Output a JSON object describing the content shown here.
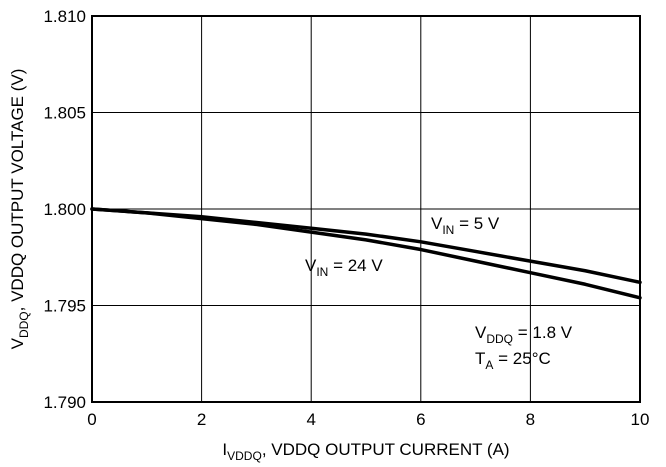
{
  "chart_data": {
    "type": "line",
    "title": "",
    "xlabel": {
      "prefix": "I",
      "sub": "VDDQ",
      "suffix": ", VDDQ OUTPUT CURRENT (A)"
    },
    "ylabel": {
      "prefix": "V",
      "sub": "DDQ",
      "suffix": ", VDDQ OUTPUT VOLTAGE (V)"
    },
    "xlim": [
      0,
      10
    ],
    "ylim": [
      1.79,
      1.81
    ],
    "xticks": [
      0,
      2,
      4,
      6,
      8,
      10
    ],
    "xtick_labels": [
      "0",
      "2",
      "4",
      "6",
      "8",
      "10"
    ],
    "yticks": [
      1.79,
      1.795,
      1.8,
      1.805,
      1.81
    ],
    "ytick_labels": [
      "1.790",
      "1.795",
      "1.800",
      "1.805",
      "1.810"
    ],
    "grid": true,
    "series": [
      {
        "key": "vin5",
        "label": {
          "prefix": "V",
          "sub": "IN",
          "suffix": " = 5 V"
        },
        "x": [
          0,
          1,
          2,
          3,
          4,
          5,
          6,
          7,
          8,
          9,
          10
        ],
        "y": [
          1.8,
          1.7998,
          1.7996,
          1.7993,
          1.799,
          1.7987,
          1.7983,
          1.7978,
          1.7973,
          1.7968,
          1.7962
        ]
      },
      {
        "key": "vin24",
        "label": {
          "prefix": "V",
          "sub": "IN",
          "suffix": " = 24 V"
        },
        "x": [
          0,
          1,
          2,
          3,
          4,
          5,
          6,
          7,
          8,
          9,
          10
        ],
        "y": [
          1.8,
          1.7998,
          1.7995,
          1.7992,
          1.7988,
          1.7984,
          1.7979,
          1.7973,
          1.7967,
          1.7961,
          1.7954
        ]
      }
    ],
    "conditions": [
      {
        "prefix": "V",
        "sub": "DDQ",
        "suffix": " = 1.8 V"
      },
      {
        "prefix": "T",
        "sub": "A",
        "suffix": " = 25°C"
      }
    ]
  }
}
